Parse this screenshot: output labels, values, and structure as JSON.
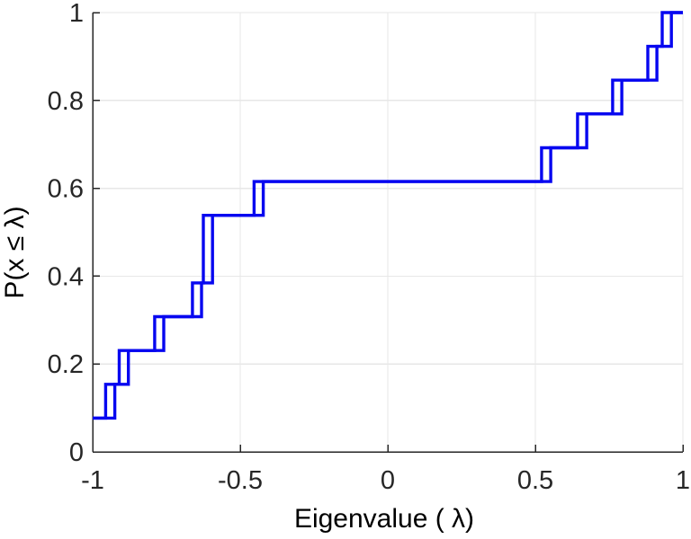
{
  "figure": {
    "xlabel": "Eigenvalue (  λ)",
    "ylabel": "P(x ≤ λ)"
  },
  "chart_data": {
    "type": "line",
    "subtype": "ecdf-stairs",
    "title": "",
    "xlabel": "Eigenvalue (  λ)",
    "ylabel": "P(x ≤ λ)",
    "xlim": [
      -1,
      1
    ],
    "ylim": [
      0,
      1
    ],
    "x_tick_values": [
      -1,
      -0.5,
      0,
      0.5,
      1
    ],
    "x_tick_labels": [
      "-1",
      "-0.5",
      "0",
      "0.5",
      "1"
    ],
    "y_tick_values": [
      0,
      0.2,
      0.4,
      0.6,
      0.8,
      1
    ],
    "y_tick_labels": [
      "0",
      "0.2",
      "0.4",
      "0.6",
      "0.8",
      "1"
    ],
    "grid": true,
    "legend": "none",
    "n_points": 13,
    "step_size": 0.0769,
    "step_levels": [
      0.077,
      0.154,
      0.231,
      0.308,
      0.385,
      0.538,
      0.538,
      0.615,
      0.692,
      0.769,
      0.846,
      0.923,
      1.0
    ],
    "series": [
      {
        "name": "ecdf-primary",
        "color": "#0707f0",
        "eigenvalues": [
          -1.0,
          -0.956,
          -0.91,
          -0.79,
          -0.662,
          -0.625,
          -0.625,
          -0.453,
          0.521,
          0.643,
          0.762,
          0.881,
          0.93
        ]
      },
      {
        "name": "ecdf-offset-trace",
        "color": "#0707f0",
        "eigenvalues": [
          -1.0,
          -0.925,
          -0.879,
          -0.759,
          -0.631,
          -0.594,
          -0.594,
          -0.422,
          0.552,
          0.674,
          0.793,
          0.912,
          0.961
        ]
      }
    ]
  },
  "colors": {
    "line": "#0707f0",
    "grid": "#e7e7e7",
    "axis": "#262626",
    "background": "#ffffff"
  }
}
